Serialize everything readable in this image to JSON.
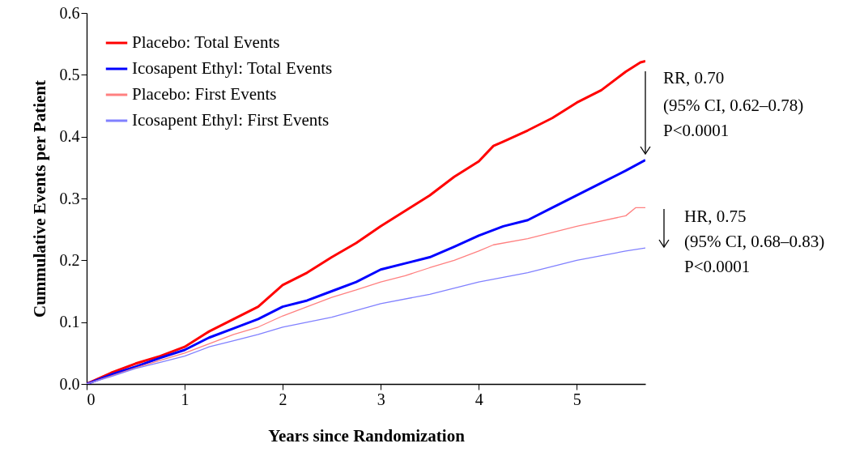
{
  "chart_data": {
    "type": "line",
    "xlabel": "Years since Randomization",
    "ylabel": "Cummulative Events per Patient",
    "xlim": [
      0,
      5.7
    ],
    "ylim": [
      0,
      0.6
    ],
    "xticks": [
      0,
      1,
      2,
      3,
      4,
      5
    ],
    "yticks": [
      {
        "value": 0,
        "label": "0.0"
      },
      {
        "value": 0.1,
        "label": "0.1"
      },
      {
        "value": 0.2,
        "label": "0.2"
      },
      {
        "value": 0.3,
        "label": "0.3"
      },
      {
        "value": 0.4,
        "label": "0.4"
      },
      {
        "value": 0.5,
        "label": "0.5"
      },
      {
        "value": 0.6,
        "label": "0.6"
      }
    ],
    "grid": false,
    "legend": "top left",
    "line_style": "solid",
    "marker": "none",
    "annotations": [
      "RR, 0.70",
      "(95% CI, 0.62–0.78)",
      "P<0.0001",
      "HR, 0.75",
      "(95% CI, 0.68–0.83)",
      "P<0.0001"
    ],
    "series": [
      {
        "name": "Placebo: Total Events",
        "color": "#ff0000",
        "x": [
          0,
          0.25,
          0.5,
          0.75,
          1,
          1.25,
          1.5,
          1.75,
          2,
          2.25,
          2.5,
          2.75,
          3,
          3.25,
          3.5,
          3.75,
          4,
          4.15,
          4.25,
          4.5,
          4.75,
          5,
          5.25,
          5.5,
          5.65,
          5.7
        ],
        "values": [
          0,
          0.018,
          0.033,
          0.045,
          0.06,
          0.085,
          0.105,
          0.125,
          0.16,
          0.18,
          0.205,
          0.228,
          0.255,
          0.28,
          0.305,
          0.335,
          0.36,
          0.385,
          0.392,
          0.41,
          0.43,
          0.455,
          0.475,
          0.505,
          0.52,
          0.522
        ]
      },
      {
        "name": "Icosapent Ethyl: Total Events",
        "color": "#0000ff",
        "x": [
          0,
          0.25,
          0.5,
          0.75,
          1,
          1.25,
          1.5,
          1.75,
          2,
          2.25,
          2.5,
          2.75,
          3,
          3.25,
          3.5,
          3.75,
          4,
          4.25,
          4.5,
          4.75,
          5,
          5.25,
          5.5,
          5.7
        ],
        "values": [
          0,
          0.015,
          0.028,
          0.042,
          0.055,
          0.075,
          0.09,
          0.105,
          0.125,
          0.135,
          0.15,
          0.165,
          0.185,
          0.195,
          0.205,
          0.222,
          0.24,
          0.255,
          0.265,
          0.285,
          0.305,
          0.325,
          0.345,
          0.362
        ]
      },
      {
        "name": "Placebo: First Events",
        "color": "#ff8080",
        "x": [
          0,
          0.25,
          0.5,
          0.75,
          1,
          1.25,
          1.5,
          1.75,
          2,
          2.25,
          2.5,
          2.75,
          3,
          3.25,
          3.5,
          3.75,
          4,
          4.15,
          4.5,
          5,
          5.5,
          5.6,
          5.7
        ],
        "values": [
          0,
          0.013,
          0.026,
          0.038,
          0.05,
          0.065,
          0.08,
          0.092,
          0.11,
          0.125,
          0.14,
          0.152,
          0.165,
          0.175,
          0.188,
          0.2,
          0.215,
          0.225,
          0.235,
          0.255,
          0.272,
          0.285,
          0.285
        ]
      },
      {
        "name": "Icosapent Ethyl: First Events",
        "color": "#8080ff",
        "x": [
          0,
          0.25,
          0.5,
          0.75,
          1,
          1.25,
          1.5,
          1.75,
          2,
          2.5,
          3,
          3.5,
          4,
          4.5,
          5,
          5.5,
          5.7
        ],
        "values": [
          0,
          0.012,
          0.025,
          0.035,
          0.045,
          0.06,
          0.07,
          0.08,
          0.092,
          0.108,
          0.13,
          0.145,
          0.165,
          0.18,
          0.2,
          0.215,
          0.22
        ]
      }
    ]
  }
}
